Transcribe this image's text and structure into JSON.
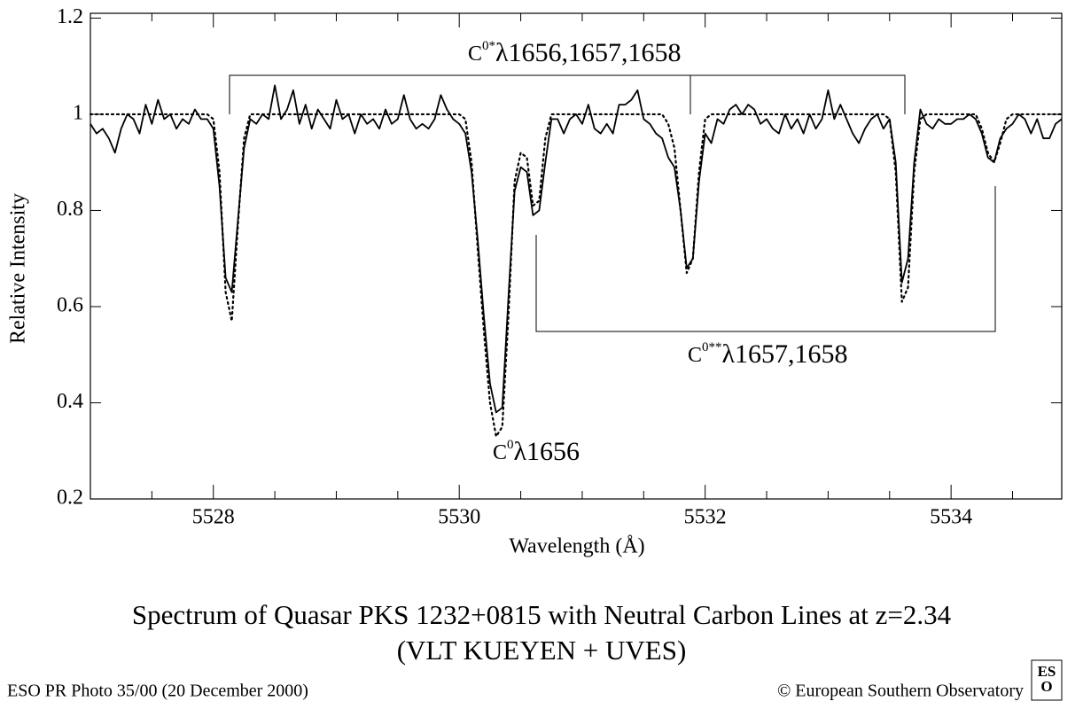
{
  "chart_data": {
    "type": "line",
    "title": "Spectrum of Quasar PKS 1232+0815 with Neutral Carbon Lines at z=2.34",
    "subtitle": "(VLT KUEYEN + UVES)",
    "xlabel": "Wavelength (Å)",
    "ylabel": "Relative Intensity",
    "xlim": [
      5527.0,
      5534.9
    ],
    "ylim": [
      0.2,
      1.21
    ],
    "xticks": [
      5528,
      5530,
      5532,
      5534
    ],
    "xminor_ticks": [
      5527.5,
      5528.5,
      5529,
      5529.5,
      5530.5,
      5531,
      5531.5,
      5532.5,
      5533,
      5533.5,
      5534.5
    ],
    "yticks": [
      0.2,
      0.4,
      0.6,
      0.8,
      1,
      1.2
    ],
    "x": [
      5527.0,
      5527.05,
      5527.1,
      5527.15,
      5527.2,
      5527.25,
      5527.3,
      5527.35,
      5527.4,
      5527.45,
      5527.5,
      5527.55,
      5527.6,
      5527.65,
      5527.7,
      5527.75,
      5527.8,
      5527.85,
      5527.9,
      5527.95,
      5528.0,
      5528.05,
      5528.1,
      5528.15,
      5528.2,
      5528.25,
      5528.3,
      5528.35,
      5528.4,
      5528.45,
      5528.5,
      5528.55,
      5528.6,
      5528.65,
      5528.7,
      5528.75,
      5528.8,
      5528.85,
      5528.9,
      5528.95,
      5529.0,
      5529.05,
      5529.1,
      5529.15,
      5529.2,
      5529.25,
      5529.3,
      5529.35,
      5529.4,
      5529.45,
      5529.5,
      5529.55,
      5529.6,
      5529.65,
      5529.7,
      5529.75,
      5529.8,
      5529.85,
      5529.9,
      5529.95,
      5530.0,
      5530.05,
      5530.1,
      5530.15,
      5530.2,
      5530.25,
      5530.3,
      5530.35,
      5530.4,
      5530.45,
      5530.5,
      5530.55,
      5530.6,
      5530.65,
      5530.7,
      5530.75,
      5530.8,
      5530.85,
      5530.9,
      5530.95,
      5531.0,
      5531.05,
      5531.1,
      5531.15,
      5531.2,
      5531.25,
      5531.3,
      5531.35,
      5531.4,
      5531.45,
      5531.5,
      5531.55,
      5531.6,
      5531.65,
      5531.7,
      5531.75,
      5531.8,
      5531.85,
      5531.9,
      5531.95,
      5532.0,
      5532.05,
      5532.1,
      5532.15,
      5532.2,
      5532.25,
      5532.3,
      5532.35,
      5532.4,
      5532.45,
      5532.5,
      5532.55,
      5532.6,
      5532.65,
      5532.7,
      5532.75,
      5532.8,
      5532.85,
      5532.9,
      5532.95,
      5533.0,
      5533.05,
      5533.1,
      5533.15,
      5533.2,
      5533.25,
      5533.3,
      5533.35,
      5533.4,
      5533.45,
      5533.5,
      5533.55,
      5533.6,
      5533.65,
      5533.7,
      5533.75,
      5533.8,
      5533.85,
      5533.9,
      5533.95,
      5534.0,
      5534.05,
      5534.1,
      5534.15,
      5534.2,
      5534.25,
      5534.3,
      5534.35,
      5534.4,
      5534.45,
      5534.5,
      5534.55,
      5534.6,
      5534.65,
      5534.7,
      5534.75,
      5534.8,
      5534.85,
      5534.9
    ],
    "series": [
      {
        "color": "#000000",
        "style": "solid",
        "values": [
          0.98,
          0.96,
          0.97,
          0.95,
          0.92,
          0.97,
          1.0,
          0.99,
          0.96,
          1.02,
          0.98,
          1.03,
          0.99,
          1.0,
          0.97,
          0.99,
          0.98,
          1.01,
          0.99,
          0.99,
          0.97,
          0.85,
          0.66,
          0.63,
          0.78,
          0.93,
          0.99,
          0.98,
          1.0,
          0.99,
          1.06,
          0.99,
          1.01,
          1.05,
          0.98,
          1.02,
          0.97,
          1.01,
          0.99,
          0.97,
          1.03,
          0.99,
          1.0,
          0.96,
          1.0,
          0.98,
          0.99,
          0.97,
          1.01,
          0.98,
          0.99,
          1.04,
          0.99,
          0.97,
          0.98,
          0.97,
          0.99,
          1.04,
          1.01,
          0.99,
          0.98,
          0.96,
          0.88,
          0.74,
          0.58,
          0.44,
          0.38,
          0.39,
          0.62,
          0.84,
          0.89,
          0.88,
          0.79,
          0.8,
          0.9,
          0.99,
          0.99,
          0.96,
          0.99,
          1.0,
          0.98,
          1.02,
          0.97,
          0.96,
          0.98,
          0.96,
          1.02,
          1.02,
          1.03,
          1.05,
          0.99,
          0.98,
          0.96,
          0.95,
          0.91,
          0.89,
          0.8,
          0.68,
          0.7,
          0.86,
          0.96,
          0.94,
          0.99,
          0.98,
          1.01,
          1.02,
          1.0,
          1.02,
          1.01,
          0.98,
          0.99,
          0.97,
          0.96,
          1.0,
          0.97,
          0.99,
          0.96,
          1.0,
          0.97,
          0.99,
          1.05,
          0.99,
          1.02,
          0.99,
          0.96,
          0.94,
          0.97,
          0.99,
          1.0,
          0.97,
          0.99,
          0.9,
          0.65,
          0.7,
          0.9,
          1.01,
          0.98,
          0.97,
          0.99,
          0.98,
          0.98,
          0.99,
          0.99,
          1.0,
          0.99,
          0.96,
          0.91,
          0.9,
          0.95,
          0.97,
          0.98,
          1.0,
          0.99,
          0.96,
          0.99,
          0.95,
          0.95,
          0.98,
          0.99
        ]
      },
      {
        "color": "#000000",
        "style": "dotted",
        "values": [
          1,
          1,
          1,
          1,
          1,
          1,
          1,
          1,
          1,
          1,
          1,
          1,
          1,
          1,
          1,
          1,
          1,
          1,
          1,
          1,
          0.99,
          0.88,
          0.63,
          0.57,
          0.77,
          0.95,
          1,
          1,
          1,
          1,
          1,
          1,
          1,
          1,
          1,
          1,
          1,
          1,
          1,
          1,
          1,
          1,
          1,
          1,
          1,
          1,
          1,
          1,
          1,
          1,
          1,
          1,
          1,
          1,
          1,
          1,
          1,
          1,
          1,
          1,
          1,
          0.99,
          0.9,
          0.72,
          0.55,
          0.4,
          0.33,
          0.35,
          0.58,
          0.86,
          0.92,
          0.91,
          0.81,
          0.82,
          0.95,
          1,
          1,
          1,
          1,
          1,
          1,
          1,
          1,
          1,
          1,
          1,
          1,
          1,
          1,
          1,
          1,
          1,
          1,
          1,
          0.98,
          0.93,
          0.8,
          0.67,
          0.7,
          0.88,
          0.99,
          1,
          1,
          1,
          1,
          1,
          1,
          1,
          1,
          1,
          1,
          1,
          1,
          1,
          1,
          1,
          1,
          1,
          1,
          1,
          1,
          1,
          1,
          1,
          1,
          1,
          1,
          1,
          1,
          1,
          0.99,
          0.88,
          0.61,
          0.64,
          0.88,
          0.99,
          1,
          1,
          1,
          1,
          1,
          1,
          1,
          1,
          1,
          0.97,
          0.92,
          0.9,
          0.94,
          0.99,
          1,
          1,
          1,
          1,
          1,
          1,
          1,
          1,
          1
        ]
      }
    ],
    "annotations": [
      {
        "base": "C",
        "sup": "0*",
        "label": "λ1656,1657,1658"
      },
      {
        "base": "C",
        "sup": "0**",
        "label": "λ1657,1658"
      },
      {
        "base": "C",
        "sup": "0",
        "label": "λ1656"
      }
    ],
    "footer": "ESO PR Photo 35/00 (20  December 2000)",
    "credit": "© European Southern Observatory",
    "logo": [
      "ES",
      "O"
    ]
  }
}
